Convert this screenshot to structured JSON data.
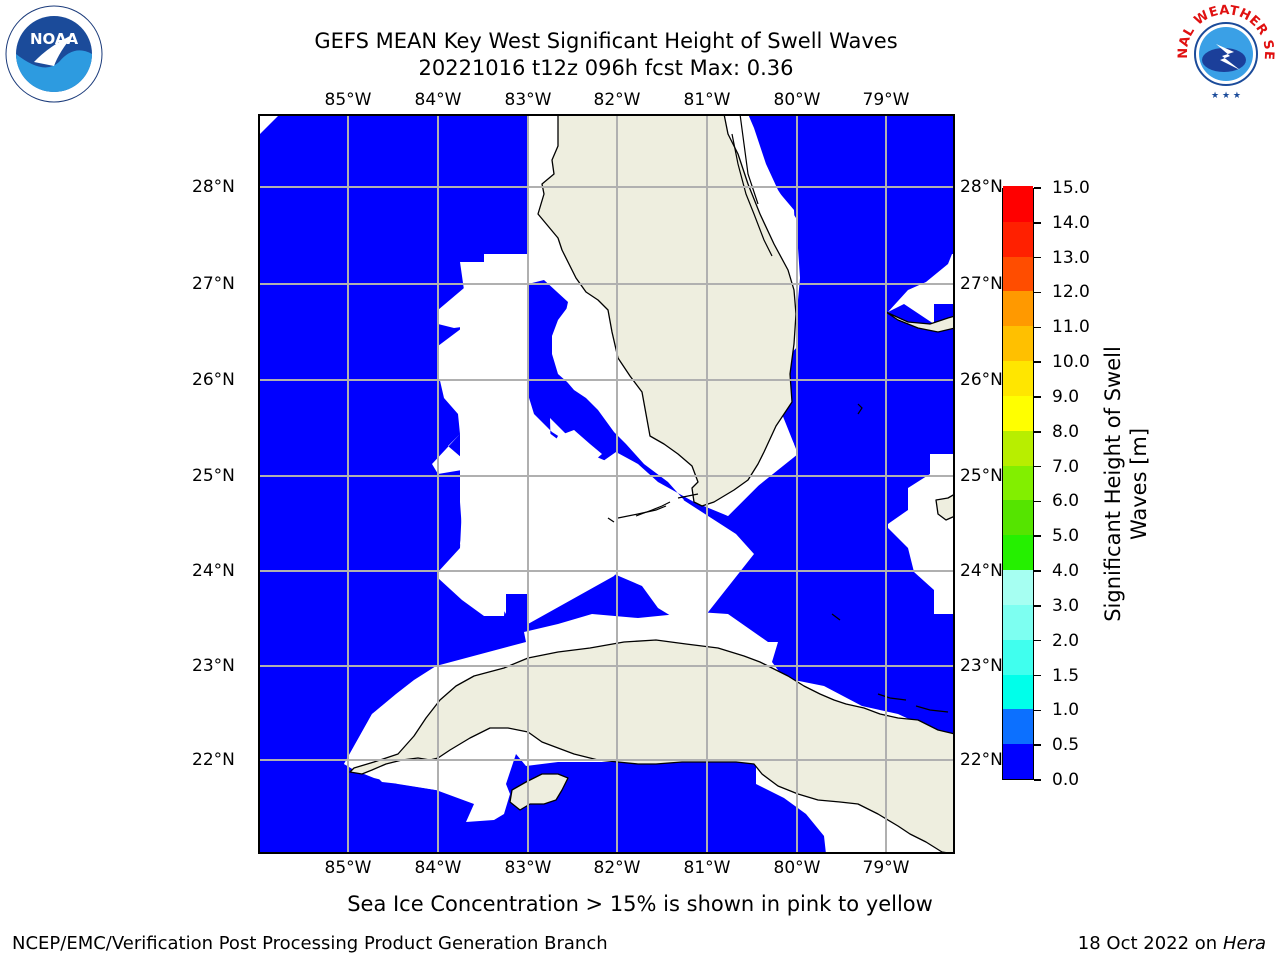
{
  "header": {
    "title_line1": "GEFS MEAN Key West Significant Height of Swell Waves",
    "title_line2": "20221016 t12z 096h fcst   Max: 0.36"
  },
  "logos": {
    "noaa_text": "NOAA",
    "nws_text": "NATIONAL WEATHER SERVICE"
  },
  "map": {
    "lon_labels": [
      "85°W",
      "84°W",
      "83°W",
      "82°W",
      "81°W",
      "80°W",
      "79°W"
    ],
    "lat_labels": [
      "28°N",
      "27°N",
      "26°N",
      "25°N",
      "24°N",
      "23°N",
      "22°N"
    ],
    "colors": {
      "ocean": "#0000ff",
      "land": "#eeeedf",
      "nodata": "#ffffff",
      "grid": "#b0b0b0"
    }
  },
  "colorbar": {
    "label": "Significant Height of Swell Waves [m]",
    "label_line1": "Significant Height of Swell",
    "label_line2": "Waves [m]",
    "ticks": [
      "15.0",
      "14.0",
      "13.0",
      "12.0",
      "11.0",
      "10.0",
      "9.0",
      "8.0",
      "7.0",
      "6.0",
      "5.0",
      "4.0",
      "3.0",
      "2.0",
      "1.5",
      "1.0",
      "0.5",
      "0.0"
    ],
    "colors": [
      "#0000ff",
      "#0c70ff",
      "#00e5ff",
      "#00ffea",
      "#40ffee",
      "#7dfff1",
      "#a6fff2",
      "#55ff77",
      "#25f000",
      "#55e400",
      "#82ef00",
      "#b8ee00",
      "#e5f400",
      "#ffff00",
      "#ffe600",
      "#ffc000",
      "#ff9900",
      "#ff7700",
      "#ff4d00",
      "#ff2000",
      "#ff0000"
    ]
  },
  "footer": {
    "note": "Sea Ice Concentration > 15% is shown in pink to yellow",
    "branch": "NCEP/EMC/Verification Post Processing Product Generation Branch",
    "date": "18 Oct 2022 on",
    "system": "Hera"
  }
}
